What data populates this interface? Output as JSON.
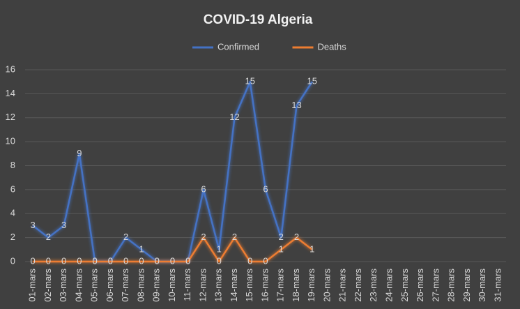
{
  "chart_data": {
    "type": "line",
    "title": "COVID-19 Algeria",
    "categories": [
      "01-mars",
      "02-mars",
      "03-mars",
      "04-mars",
      "05-mars",
      "06-mars",
      "07-mars",
      "08-mars",
      "09-mars",
      "10-mars",
      "11-mars",
      "12-mars",
      "13-mars",
      "14-mars",
      "15-mars",
      "16-mars",
      "17-mars",
      "18-mars",
      "19-mars",
      "20-mars",
      "21-mars",
      "22-mars",
      "23-mars",
      "24-mars",
      "25-mars",
      "26-mars",
      "27-mars",
      "28-mars",
      "29-mars",
      "30-mars",
      "31-mars"
    ],
    "series": [
      {
        "name": "Confirmed",
        "color": "#4472c4",
        "values": [
          3,
          2,
          3,
          9,
          0,
          0,
          2,
          1,
          0,
          0,
          0,
          6,
          1,
          12,
          15,
          6,
          2,
          13,
          15,
          null,
          null,
          null,
          null,
          null,
          null,
          null,
          null,
          null,
          null,
          null,
          null
        ]
      },
      {
        "name": "Deaths",
        "color": "#ed7d31",
        "values": [
          0,
          0,
          0,
          0,
          0,
          0,
          0,
          0,
          0,
          0,
          0,
          2,
          0,
          2,
          0,
          0,
          1,
          2,
          1,
          null,
          null,
          null,
          null,
          null,
          null,
          null,
          null,
          null,
          null,
          null,
          null
        ]
      }
    ],
    "ylim": [
      0,
      16
    ],
    "yticks": [
      0,
      2,
      4,
      6,
      8,
      10,
      12,
      14,
      16
    ],
    "grid": true,
    "legend": "top"
  }
}
